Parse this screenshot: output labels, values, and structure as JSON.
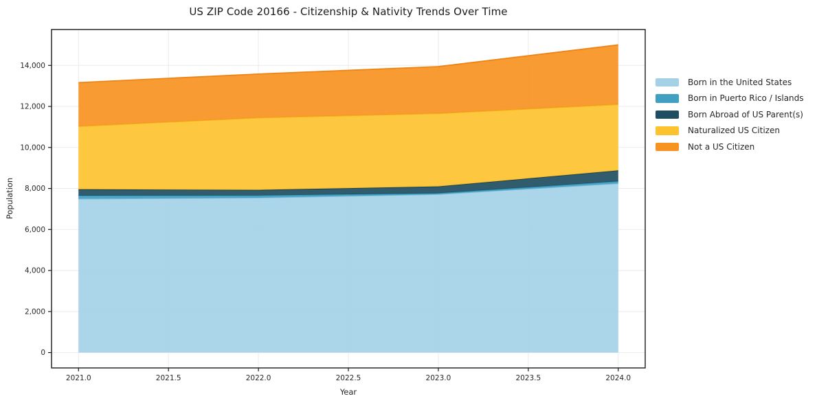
{
  "chart_data": {
    "type": "area",
    "stacked": true,
    "title": "US ZIP Code 20166 - Citizenship & Nativity Trends Over Time",
    "xlabel": "Year",
    "ylabel": "Population",
    "x": [
      2021,
      2022,
      2023,
      2024
    ],
    "series": [
      {
        "name": "Born in the United States",
        "color": "#A4D1E6",
        "edge_color": "#7EBAD8",
        "values": [
          7500,
          7550,
          7720,
          8250
        ]
      },
      {
        "name": "Born in Puerto Rico / Islands",
        "color": "#41A0C2",
        "edge_color": "#2F93B6",
        "values": [
          150,
          110,
          50,
          100
        ]
      },
      {
        "name": "Born Abroad of US Parent(s)",
        "color": "#1F4E62",
        "edge_color": "#143D4F",
        "values": [
          310,
          270,
          330,
          530
        ]
      },
      {
        "name": "Naturalized US Citizen",
        "color": "#FDC32F",
        "edge_color": "#F4B41C",
        "values": [
          3070,
          3520,
          3560,
          3220
        ]
      },
      {
        "name": "Not a US Citizen",
        "color": "#F79321",
        "edge_color": "#EE8414",
        "values": [
          2130,
          2130,
          2280,
          2900
        ]
      }
    ],
    "totals": [
      13160,
      13580,
      13940,
      15000
    ],
    "xlim": [
      2020.85,
      2024.15
    ],
    "ylim": [
      -750,
      15750
    ],
    "x_ticks": [
      {
        "v": 2021.0,
        "label": "2021.0"
      },
      {
        "v": 2021.5,
        "label": "2021.5"
      },
      {
        "v": 2022.0,
        "label": "2022.0"
      },
      {
        "v": 2022.5,
        "label": "2022.5"
      },
      {
        "v": 2023.0,
        "label": "2023.0"
      },
      {
        "v": 2023.5,
        "label": "2023.5"
      },
      {
        "v": 2024.0,
        "label": "2024.0"
      }
    ],
    "y_ticks": [
      {
        "v": 0,
        "label": "0"
      },
      {
        "v": 2000,
        "label": "2,000"
      },
      {
        "v": 4000,
        "label": "4,000"
      },
      {
        "v": 6000,
        "label": "6,000"
      },
      {
        "v": 8000,
        "label": "8,000"
      },
      {
        "v": 10000,
        "label": "10,000"
      },
      {
        "v": 12000,
        "label": "12,000"
      },
      {
        "v": 14000,
        "label": "14,000"
      }
    ],
    "grid": true,
    "grid_color": "#ebebeb",
    "frame_color": "#1a1a1a",
    "tick_text_color": "#262626",
    "legend_position": "right",
    "fill_opacity": 0.92
  }
}
